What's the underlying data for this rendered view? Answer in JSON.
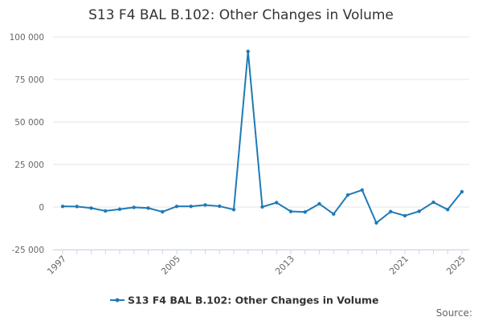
{
  "chart_data": {
    "type": "line",
    "title": "S13 F4 BAL B.102: Other Changes in Volume",
    "xlabel": "",
    "ylabel": "",
    "x": [
      1997,
      1998,
      1999,
      2000,
      2001,
      2002,
      2003,
      2004,
      2005,
      2006,
      2007,
      2008,
      2009,
      2010,
      2011,
      2012,
      2013,
      2014,
      2015,
      2016,
      2017,
      2018,
      2019,
      2020,
      2021,
      2022,
      2023,
      2024,
      2025
    ],
    "series": [
      {
        "name": "S13 F4 BAL B.102: Other Changes in Volume",
        "color": "#1f7ab6",
        "values": [
          400,
          300,
          -600,
          -2300,
          -1300,
          -200,
          -600,
          -2800,
          400,
          400,
          1200,
          500,
          -1500,
          91500,
          100,
          2600,
          -2600,
          -2900,
          1900,
          -4100,
          7100,
          10000,
          -9300,
          -2700,
          -5100,
          -2500,
          2800,
          -1500,
          9000
        ]
      }
    ],
    "xticks": [
      "1997",
      "2005",
      "2013",
      "2021",
      "2025"
    ],
    "yticks": [
      "100 000",
      "75 000",
      "50 000",
      "25 000",
      "0",
      "-25 000"
    ],
    "ylim": [
      -25000,
      100000
    ],
    "grid": true,
    "legend_position": "bottom",
    "source_label": "Source:"
  }
}
